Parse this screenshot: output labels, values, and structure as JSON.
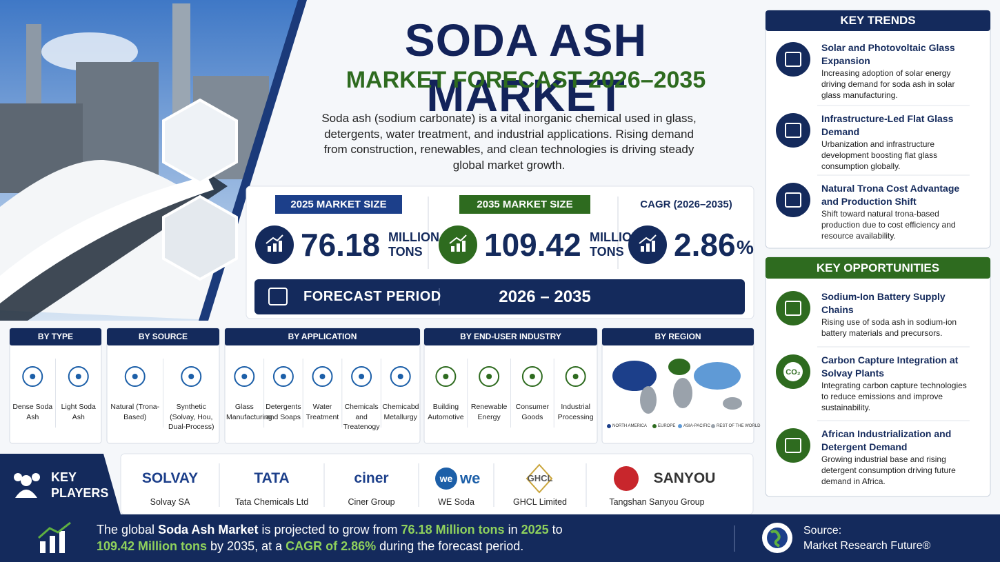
{
  "header": {
    "title": "SODA ASH MARKET",
    "subtitle": "MARKET FORECAST 2026–2035",
    "description": "Soda ash (sodium carbonate) is a vital inorganic chemical used in glass, detergents, water treatment, and industrial applications. Rising demand from construction, renewables, and clean technologies is driving steady global market growth."
  },
  "metrics": [
    {
      "label": "2025 MARKET SIZE",
      "value": 76.18,
      "unit": "MILLION TONS"
    },
    {
      "label": "2035 MARKET SIZE",
      "value": 109.42,
      "unit": "MILLION TONS"
    },
    {
      "label": "CAGR (2026–2035)",
      "value": 2.86,
      "unit": "%"
    }
  ],
  "forecast": {
    "label": "FORECAST PERIOD",
    "value": "2026 – 2035"
  },
  "segments": [
    {
      "title": "BY TYPE",
      "items": [
        "Dense Soda Ash",
        "Light Soda Ash"
      ]
    },
    {
      "title": "BY SOURCE",
      "items": [
        "Natural (Trona-Based)",
        "Synthetic (Solvay, Hou, Dual-Process)"
      ]
    },
    {
      "title": "BY APPLICATION",
      "items": [
        "Glass Manufacturing",
        "Detergents and Soaps",
        "Water Treatment",
        "Chemicals and Treatenogy",
        "Chemicabd Metallurgy"
      ]
    },
    {
      "title": "BY END-USER INDUSTRY",
      "items": [
        "Building Automotive",
        "Renewable Energy",
        "Consumer Goods",
        "Industrial Processing"
      ]
    },
    {
      "title": "BY REGION",
      "legend": [
        "NORTH AMERICA",
        "EUROPE",
        "ASIA-PACIFIC",
        "REST OF THE WORLD"
      ]
    }
  ],
  "key_players": {
    "title": "KEY PLAYERS",
    "players": [
      {
        "logo": "SOLVAY",
        "name": "Solvay SA"
      },
      {
        "logo": "TATA",
        "name": "Tata Chemicals Ltd"
      },
      {
        "logo": "ciner",
        "name": "Ciner Group"
      },
      {
        "logo": "we",
        "name": "WE Soda"
      },
      {
        "logo": "GHCL",
        "name": "GHCL Limited"
      },
      {
        "logo": "SANYOU",
        "name": "Tangshan Sanyou Group"
      }
    ]
  },
  "summary": [
    {
      "text": "The global ",
      "emphasis": "plain"
    },
    {
      "text": "Soda Ash Market",
      "emphasis": "bold"
    },
    {
      "text": " is projected to grow from ",
      "emphasis": "plain"
    },
    {
      "text": "76.18 Million tons",
      "emphasis": "green"
    },
    {
      "text": " in ",
      "emphasis": "plain"
    },
    {
      "text": "2025",
      "emphasis": "green"
    },
    {
      "text": " to ",
      "emphasis": "plain"
    },
    {
      "text": "109.42 Million tons",
      "emphasis": "green"
    },
    {
      "text": " by 2035, at a ",
      "emphasis": "plain"
    },
    {
      "text": "CAGR of 2.86%",
      "emphasis": "green"
    },
    {
      "text": " during the forecast period.",
      "emphasis": "plain"
    }
  ],
  "source": {
    "label": "Source:",
    "value": "Market Research Future®"
  },
  "key_trends": {
    "title": "KEY TRENDS",
    "items": [
      {
        "title": "Solar and Photovoltaic Glass Expansion",
        "text": "Increasing adoption of solar energy driving demand for soda ash in solar glass manufacturing."
      },
      {
        "title": "Infrastructure-Led Flat Glass Demand",
        "text": "Urbanization and infrastructure development boosting flat glass consumption globally."
      },
      {
        "title": "Natural Trona Cost Advantage and Production Shift",
        "text": "Shift toward natural trona-based production due to cost efficiency and resource availability."
      }
    ]
  },
  "key_opportunities": {
    "title": "KEY OPPORTUNITIES",
    "items": [
      {
        "title": "Sodium-Ion Battery Supply Chains",
        "text": "Rising use of soda ash in sodium-ion battery materials and precursors."
      },
      {
        "title": "Carbon Capture Integration at Solvay Plants",
        "text": "Integrating carbon capture technologies to reduce emissions and improve sustainability.",
        "icon_text": "CO₂"
      },
      {
        "title": "African Industrialization and Detergent Demand",
        "text": "Growing industrial base and rising detergent consumption driving future demand in Africa."
      }
    ]
  }
}
